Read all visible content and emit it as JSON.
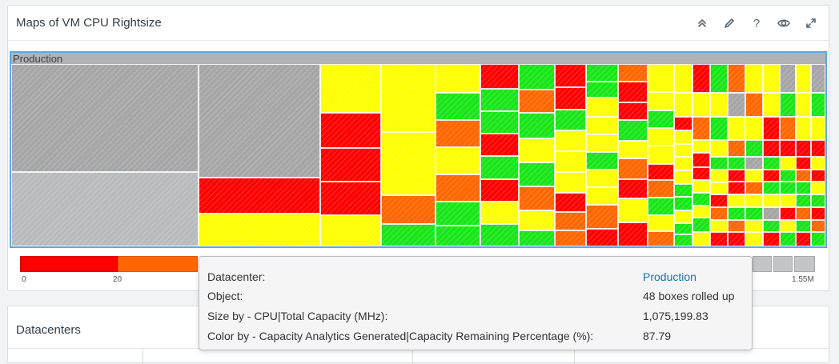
{
  "widget": {
    "title": "Maps of VM CPU Rightsize",
    "toolbar": [
      "collapse-icon",
      "edit-icon",
      "help-icon",
      "view-icon",
      "expand-icon"
    ]
  },
  "treemap": {
    "root_label": "Production",
    "colors": {
      "red": "#ff0000",
      "orange": "#ff6600",
      "yellow": "#ffff00",
      "green": "#19e619",
      "gray": "#a6a6a6",
      "light_gray": "#b9babc"
    }
  },
  "legend": {
    "labels": {
      "min": "0",
      "second": "20",
      "max": "1.55M"
    }
  },
  "tooltip": {
    "rows": [
      {
        "key": "Datacenter:",
        "value": "Production",
        "link": true
      },
      {
        "key": "Object:",
        "value": "48 boxes rolled up"
      },
      {
        "key": "Size by - CPU|Total Capacity (MHz):",
        "value": "1,075,199.83"
      },
      {
        "key": "Color by - Capacity Analytics Generated|Capacity Remaining Percentage (%):",
        "value": "87.79"
      }
    ]
  },
  "datacenters": {
    "title": "Datacenters"
  }
}
